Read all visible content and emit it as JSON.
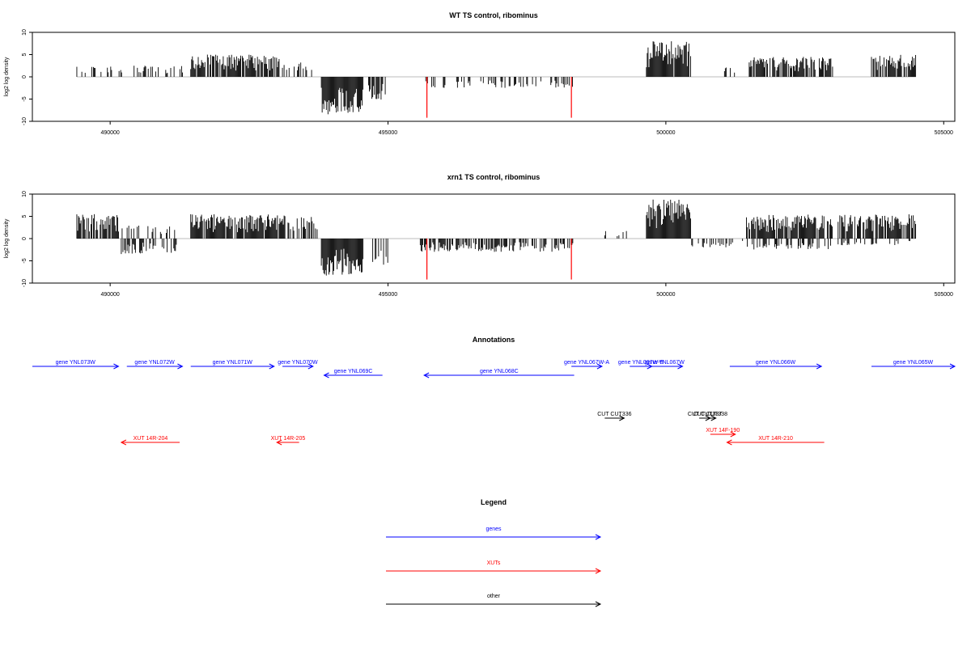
{
  "colors": {
    "gene": "#0000ff",
    "xut": "#ff0000",
    "other": "#000000",
    "signal": "#000000",
    "marker": "#ff0000",
    "axis": "#000000",
    "zero_line": "#bbbbbb"
  },
  "chart_data": [
    {
      "type": "bar",
      "title": "WT TS control, ribominus",
      "ylabel": "log2 log density",
      "xlim": [
        488600,
        505200
      ],
      "ylim": [
        -10,
        10
      ],
      "xticks": [
        "490000",
        "495000",
        "500000",
        "505000"
      ],
      "yticks": [
        "-10",
        "-5",
        "0",
        "5",
        "10"
      ],
      "vertical_markers": [
        495700,
        498300
      ],
      "segments": [
        {
          "from": 489400,
          "to": 489850,
          "direction": "pos",
          "max": 2.5,
          "density": 0.25
        },
        {
          "from": 489950,
          "to": 491300,
          "direction": "pos",
          "max": 2.5,
          "density": 0.25
        },
        {
          "from": 491450,
          "to": 493050,
          "direction": "pos",
          "max": 5,
          "density": 0.9
        },
        {
          "from": 493100,
          "to": 493650,
          "direction": "pos",
          "max": 3.5,
          "density": 0.4
        },
        {
          "from": 493800,
          "to": 494550,
          "direction": "neg",
          "max": 8.5,
          "density": 1.0
        },
        {
          "from": 494650,
          "to": 494950,
          "direction": "neg",
          "max": 5.5,
          "density": 0.5
        },
        {
          "from": 495650,
          "to": 498350,
          "direction": "neg",
          "max": 2.5,
          "density": 0.3
        },
        {
          "from": 499650,
          "to": 500450,
          "direction": "pos",
          "max": 8,
          "density": 0.95
        },
        {
          "from": 500950,
          "to": 501300,
          "direction": "pos",
          "max": 3,
          "density": 0.3
        },
        {
          "from": 501500,
          "to": 503000,
          "direction": "pos",
          "max": 4.5,
          "density": 0.8
        },
        {
          "from": 503700,
          "to": 504500,
          "direction": "pos",
          "max": 5,
          "density": 0.8
        }
      ]
    },
    {
      "type": "bar",
      "title": "xrn1 TS control, ribominus",
      "ylabel": "log2 log density",
      "xlim": [
        488600,
        505200
      ],
      "ylim": [
        -10,
        10
      ],
      "xticks": [
        "490000",
        "495000",
        "500000",
        "505000"
      ],
      "yticks": [
        "-10",
        "-5",
        "0",
        "5",
        "10"
      ],
      "vertical_markers": [
        495700,
        498300
      ],
      "segments": [
        {
          "from": 489400,
          "to": 490150,
          "direction": "pos",
          "max": 5.5,
          "density": 0.85
        },
        {
          "from": 490200,
          "to": 491200,
          "direction": "neg",
          "max": 3.5,
          "density": 0.4
        },
        {
          "from": 490200,
          "to": 491200,
          "direction": "pos",
          "max": 3,
          "density": 0.3
        },
        {
          "from": 491450,
          "to": 493150,
          "direction": "pos",
          "max": 5.5,
          "density": 0.9
        },
        {
          "from": 493200,
          "to": 493750,
          "direction": "pos",
          "max": 5,
          "density": 0.6
        },
        {
          "from": 493800,
          "to": 494550,
          "direction": "neg",
          "max": 8.5,
          "density": 1.0
        },
        {
          "from": 494650,
          "to": 495000,
          "direction": "neg",
          "max": 6,
          "density": 0.6
        },
        {
          "from": 495550,
          "to": 498350,
          "direction": "neg",
          "max": 3,
          "density": 0.55
        },
        {
          "from": 498900,
          "to": 499300,
          "direction": "pos",
          "max": 2,
          "density": 0.2
        },
        {
          "from": 499650,
          "to": 500450,
          "direction": "pos",
          "max": 9,
          "density": 0.95
        },
        {
          "from": 500450,
          "to": 501450,
          "direction": "neg",
          "max": 2,
          "density": 0.35
        },
        {
          "from": 501450,
          "to": 503000,
          "direction": "pos",
          "max": 5.5,
          "density": 0.9
        },
        {
          "from": 501450,
          "to": 503000,
          "direction": "neg",
          "max": 2.5,
          "density": 0.4
        },
        {
          "from": 503100,
          "to": 504500,
          "direction": "pos",
          "max": 5.5,
          "density": 0.8
        },
        {
          "from": 503100,
          "to": 504500,
          "direction": "neg",
          "max": 1.5,
          "density": 0.25
        }
      ]
    }
  ],
  "annotations": {
    "title": "Annotations",
    "items": [
      {
        "label": "gene YNL073W",
        "kind": "gene",
        "from": 488600,
        "to": 490150,
        "strand": "+",
        "lane": 0
      },
      {
        "label": "gene YNL072W",
        "kind": "gene",
        "from": 490300,
        "to": 491300,
        "strand": "+",
        "lane": 0
      },
      {
        "label": "gene YNL071W",
        "kind": "gene",
        "from": 491450,
        "to": 492950,
        "strand": "+",
        "lane": 0
      },
      {
        "label": "gene YNL070W",
        "kind": "gene",
        "from": 493100,
        "to": 493650,
        "strand": "+",
        "lane": 0
      },
      {
        "label": "gene YNL069C",
        "kind": "gene",
        "from": 493850,
        "to": 494900,
        "strand": "-",
        "lane": 1
      },
      {
        "label": "gene YNL068C",
        "kind": "gene",
        "from": 495650,
        "to": 498350,
        "strand": "-",
        "lane": 1
      },
      {
        "label": "gene YNL067W-A",
        "kind": "gene",
        "from": 498300,
        "to": 498850,
        "strand": "+",
        "lane": 0
      },
      {
        "label": "gene YNL067W-B",
        "kind": "gene",
        "from": 499350,
        "to": 499750,
        "strand": "+",
        "lane": 0
      },
      {
        "label": "gene YNL067W",
        "kind": "gene",
        "from": 499650,
        "to": 500300,
        "strand": "+",
        "lane": 0
      },
      {
        "label": "gene YNL066W",
        "kind": "gene",
        "from": 501150,
        "to": 502800,
        "strand": "+",
        "lane": 0
      },
      {
        "label": "gene YNL065W",
        "kind": "gene",
        "from": 503700,
        "to": 505200,
        "strand": "+",
        "lane": 0
      },
      {
        "label": "CUT CUT336",
        "kind": "other",
        "from": 498900,
        "to": 499250,
        "strand": "+",
        "lane": 2
      },
      {
        "label": "CUT CUT337",
        "kind": "other",
        "from": 500600,
        "to": 500800,
        "strand": "+",
        "lane": 2
      },
      {
        "label": "CUT CUT338",
        "kind": "other",
        "from": 500700,
        "to": 500900,
        "strand": "+",
        "lane": 2
      },
      {
        "label": "XUT 14F-190",
        "kind": "xut",
        "from": 500800,
        "to": 501250,
        "strand": "+",
        "lane": 3
      },
      {
        "label": "XUT 14R-204",
        "kind": "xut",
        "from": 490200,
        "to": 491250,
        "strand": "-",
        "lane": 4
      },
      {
        "label": "XUT 14R-205",
        "kind": "xut",
        "from": 493000,
        "to": 493400,
        "strand": "-",
        "lane": 4
      },
      {
        "label": "XUT 14R-210",
        "kind": "xut",
        "from": 501100,
        "to": 502850,
        "strand": "-",
        "lane": 4
      }
    ]
  },
  "legend": {
    "title": "Legend",
    "items": [
      {
        "label": "genes",
        "kind": "gene"
      },
      {
        "label": "XUTs",
        "kind": "xut"
      },
      {
        "label": "other",
        "kind": "other"
      }
    ]
  }
}
